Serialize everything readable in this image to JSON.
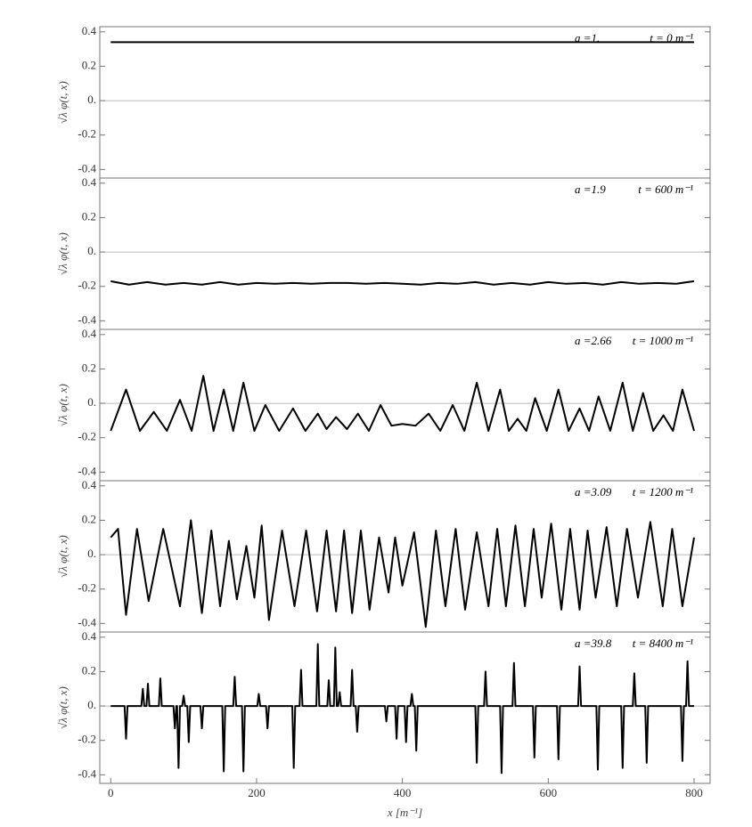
{
  "chart_data": [
    {
      "type": "line",
      "color": "#000000",
      "ylabel": "√λ φ(t, x)",
      "annotations": [
        "a =1.",
        "t = 0 m⁻¹"
      ],
      "xlim": [
        -15,
        822
      ],
      "ylim": [
        -0.45,
        0.43
      ],
      "yticks": [
        -0.4,
        -0.2,
        {
          "value": 0,
          "label": "0."
        },
        0.2,
        0.4
      ],
      "x": [
        0,
        800
      ],
      "values": [
        0.34,
        0.34
      ]
    },
    {
      "type": "line",
      "color": "#000000",
      "ylabel": "√λ φ(t, x)",
      "annotations": [
        "a =1.9",
        "t = 600 m⁻¹"
      ],
      "xlim": [
        -15,
        822
      ],
      "ylim": [
        -0.45,
        0.43
      ],
      "yticks": [
        -0.4,
        -0.2,
        {
          "value": 0,
          "label": "0."
        },
        0.2,
        0.4
      ],
      "x": [
        0,
        25,
        50,
        75,
        100,
        125,
        150,
        175,
        200,
        225,
        250,
        275,
        300,
        325,
        350,
        375,
        400,
        425,
        450,
        475,
        500,
        525,
        550,
        575,
        600,
        625,
        650,
        675,
        700,
        725,
        750,
        775,
        800
      ],
      "values": [
        -0.17,
        -0.19,
        -0.175,
        -0.19,
        -0.18,
        -0.19,
        -0.175,
        -0.19,
        -0.18,
        -0.185,
        -0.18,
        -0.185,
        -0.18,
        -0.18,
        -0.185,
        -0.18,
        -0.185,
        -0.19,
        -0.18,
        -0.185,
        -0.175,
        -0.19,
        -0.18,
        -0.19,
        -0.175,
        -0.185,
        -0.18,
        -0.19,
        -0.175,
        -0.185,
        -0.18,
        -0.185,
        -0.17
      ]
    },
    {
      "type": "line",
      "color": "#000000",
      "ylabel": "√λ φ(t, x)",
      "annotations": [
        "a =2.66",
        "t = 1000 m⁻¹"
      ],
      "xlim": [
        -15,
        822
      ],
      "ylim": [
        -0.45,
        0.43
      ],
      "yticks": [
        -0.4,
        -0.2,
        {
          "value": 0,
          "label": "0."
        },
        0.2,
        0.4
      ],
      "x": [
        0,
        21,
        40,
        59,
        77,
        95,
        111,
        127,
        141,
        155,
        168,
        182,
        197,
        212,
        231,
        250,
        267,
        284,
        296,
        309,
        324,
        339,
        354,
        370,
        385,
        400,
        418,
        436,
        452,
        469,
        485,
        502,
        518,
        534,
        546,
        558,
        570,
        582,
        598,
        614,
        628,
        643,
        656,
        669,
        685,
        702,
        716,
        730,
        744,
        758,
        771,
        784,
        800
      ],
      "values": [
        -0.16,
        0.08,
        -0.16,
        -0.05,
        -0.16,
        0.02,
        -0.16,
        0.16,
        -0.16,
        0.08,
        -0.16,
        0.12,
        -0.16,
        -0.01,
        -0.16,
        -0.03,
        -0.16,
        -0.06,
        -0.15,
        -0.08,
        -0.15,
        -0.06,
        -0.16,
        -0.01,
        -0.13,
        -0.12,
        -0.13,
        -0.06,
        -0.16,
        -0.01,
        -0.16,
        0.12,
        -0.16,
        0.08,
        -0.16,
        -0.09,
        -0.16,
        0.03,
        -0.16,
        0.08,
        -0.16,
        -0.03,
        -0.16,
        0.04,
        -0.16,
        0.12,
        -0.16,
        0.06,
        -0.16,
        -0.07,
        -0.16,
        0.08,
        -0.16
      ]
    },
    {
      "type": "line",
      "color": "#000000",
      "ylabel": "√λ φ(t, x)",
      "annotations": [
        "a =3.09",
        "t = 1200 m⁻¹"
      ],
      "xlim": [
        -15,
        822
      ],
      "ylim": [
        -0.45,
        0.43
      ],
      "yticks": [
        -0.4,
        -0.2,
        {
          "value": 0,
          "label": "0."
        },
        0.2,
        0.4
      ],
      "x": [
        0,
        10,
        21,
        36,
        52,
        72,
        95,
        110,
        125,
        138,
        150,
        162,
        173,
        186,
        197,
        207,
        217,
        235,
        252,
        268,
        283,
        296,
        309,
        320,
        331,
        343,
        355,
        368,
        381,
        390,
        400,
        416,
        432,
        446,
        459,
        473,
        486,
        502,
        518,
        530,
        542,
        555,
        568,
        580,
        591,
        604,
        618,
        630,
        643,
        654,
        665,
        680,
        694,
        708,
        723,
        740,
        757,
        770,
        784,
        800
      ],
      "values": [
        0.1,
        0.15,
        -0.35,
        0.15,
        -0.27,
        0.15,
        -0.3,
        0.2,
        -0.34,
        0.14,
        -0.3,
        0.08,
        -0.26,
        0.05,
        -0.25,
        0.17,
        -0.38,
        0.14,
        -0.3,
        0.14,
        -0.33,
        0.14,
        -0.33,
        0.14,
        -0.34,
        0.14,
        -0.32,
        0.1,
        -0.22,
        0.1,
        -0.18,
        0.13,
        -0.42,
        0.14,
        -0.3,
        0.15,
        -0.32,
        0.13,
        -0.3,
        0.15,
        -0.3,
        0.17,
        -0.3,
        0.15,
        -0.25,
        0.18,
        -0.32,
        0.15,
        -0.32,
        0.14,
        -0.25,
        0.16,
        -0.3,
        0.15,
        -0.25,
        0.19,
        -0.3,
        0.15,
        -0.3,
        0.1
      ]
    },
    {
      "type": "line",
      "color": "#000000",
      "ylabel": "√λ φ(t, x)",
      "annotations": [
        "a =39.8",
        "t = 8400 m⁻¹"
      ],
      "xlabel": "x [m⁻¹]",
      "xlim": [
        -15,
        822
      ],
      "ylim": [
        -0.45,
        0.43
      ],
      "xticks": [
        0,
        200,
        400,
        600,
        800
      ],
      "yticks": [
        -0.4,
        -0.2,
        {
          "value": 0,
          "label": "0."
        },
        0.2,
        0.4
      ],
      "x": [
        0,
        19,
        21,
        23,
        42,
        44,
        46,
        49,
        51,
        53,
        66,
        68,
        70,
        86,
        88,
        90,
        91,
        93,
        95,
        98,
        100,
        102,
        105,
        107,
        109,
        123,
        125,
        127,
        153,
        155,
        157,
        168,
        170,
        172,
        180,
        182,
        184,
        201,
        203,
        205,
        213,
        215,
        217,
        249,
        251,
        253,
        259,
        261,
        263,
        282,
        284,
        286,
        297,
        299,
        301,
        306,
        308,
        310,
        312,
        314,
        316,
        329,
        331,
        333,
        336,
        338,
        340,
        376,
        378,
        380,
        390,
        392,
        394,
        403,
        405,
        407,
        411,
        413,
        415,
        417,
        419,
        421,
        500,
        502,
        504,
        512,
        514,
        516,
        534,
        536,
        538,
        551,
        553,
        555,
        579,
        581,
        583,
        612,
        614,
        616,
        641,
        643,
        645,
        666,
        668,
        670,
        700,
        702,
        704,
        716,
        718,
        720,
        733,
        735,
        737,
        782,
        784,
        786,
        789,
        791,
        793,
        800
      ],
      "values": [
        0,
        0,
        -0.19,
        0,
        0,
        0.1,
        0,
        0,
        0.13,
        0,
        0,
        0.16,
        0,
        0,
        -0.13,
        0,
        0,
        -0.36,
        0,
        0,
        0.06,
        0,
        0,
        -0.21,
        0,
        0,
        -0.13,
        0,
        0,
        -0.38,
        0,
        0,
        0.17,
        0,
        0,
        -0.38,
        0,
        0,
        0.07,
        0,
        0,
        -0.13,
        0,
        0,
        -0.36,
        0,
        0,
        0.21,
        0,
        0,
        0.36,
        0,
        0,
        0.15,
        0,
        0,
        0.34,
        0,
        0,
        0.08,
        0,
        0,
        0.21,
        0,
        0,
        -0.15,
        0,
        0,
        -0.09,
        0,
        0,
        -0.19,
        0,
        0,
        -0.21,
        0,
        0,
        0.07,
        0,
        0,
        -0.26,
        0,
        0,
        -0.33,
        0,
        0,
        0.2,
        0,
        0,
        -0.39,
        0,
        0,
        0.25,
        0,
        0,
        -0.3,
        0,
        0,
        -0.31,
        0,
        0,
        0.23,
        0,
        0,
        -0.37,
        0,
        0,
        -0.36,
        0,
        0,
        0.19,
        0,
        0,
        -0.33,
        0,
        0,
        -0.32,
        0,
        0,
        0.26,
        0,
        0
      ]
    }
  ]
}
